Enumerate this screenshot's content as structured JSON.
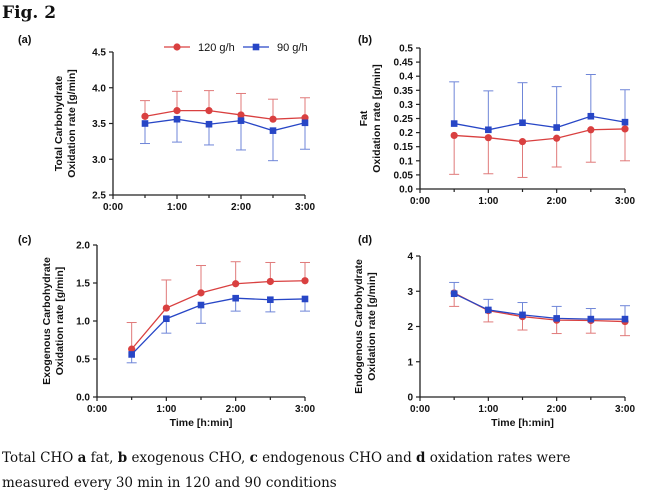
{
  "figure": {
    "title": "Fig. 2"
  },
  "caption": {
    "p1": "Total CHO ",
    "b1": "a",
    "p2": " fat, ",
    "b2": "b",
    "p3": " exogenous CHO, ",
    "b3": "c",
    "p4": " endogenous CHO and ",
    "b4": "d",
    "p5": " oxidation rates were measured every 30 min in 120 and 90 conditions"
  },
  "legend": {
    "entries": [
      "120 g/h",
      "90 g/h"
    ],
    "placement": "top"
  },
  "colors": {
    "s120": "#d94040",
    "s90": "#2746c6",
    "e120": "#e07a7a",
    "e90": "#6f86d8",
    "axis": "#222222"
  },
  "chart_data": [
    {
      "panel": "(a)",
      "type": "line",
      "ylabel": [
        "Total Carbohydrate",
        "Oxidation rate [g/min]"
      ],
      "xlabel": "",
      "ylim": [
        2.5,
        4.5
      ],
      "yticks": [
        "2.5",
        "3.0",
        "3.5",
        "4.0",
        "4.5"
      ],
      "x": [
        0.5,
        1.0,
        1.5,
        2.0,
        2.5,
        3.0
      ],
      "xticks": [
        "0:00",
        "1:00",
        "2:00",
        "3:00"
      ],
      "xlim": [
        0,
        3
      ],
      "series": [
        {
          "name": "120 g/h",
          "values": [
            3.6,
            3.68,
            3.68,
            3.62,
            3.56,
            3.58
          ],
          "err_up": [
            0.22,
            0.27,
            0.28,
            0.3,
            0.28,
            0.28
          ],
          "err_down": [
            0.0,
            0.0,
            0.0,
            0.0,
            0.0,
            0.0
          ]
        },
        {
          "name": "90 g/h",
          "values": [
            3.5,
            3.56,
            3.49,
            3.54,
            3.4,
            3.51
          ],
          "err_up": [
            0.0,
            0.0,
            0.0,
            0.0,
            0.0,
            0.0
          ],
          "err_down": [
            0.28,
            0.32,
            0.29,
            0.41,
            0.42,
            0.37
          ]
        }
      ]
    },
    {
      "panel": "(b)",
      "type": "line",
      "ylabel": [
        "Fat",
        "Oxidation rate [g/min]"
      ],
      "xlabel": "",
      "ylim": [
        0,
        0.5
      ],
      "yticks": [
        "0.0",
        "0.05",
        "0.1",
        "0.15",
        "0.2",
        "0.25",
        "0.3",
        "0.35",
        "0.4",
        "0.45",
        "0.5"
      ],
      "x": [
        0.5,
        1.0,
        1.5,
        2.0,
        2.5,
        3.0
      ],
      "xticks": [
        "0:00",
        "1:00",
        "2:00",
        "3:00"
      ],
      "xlim": [
        0,
        3
      ],
      "series": [
        {
          "name": "120 g/h",
          "values": [
            0.19,
            0.182,
            0.168,
            0.18,
            0.21,
            0.213
          ],
          "err_up": [
            0.0,
            0.0,
            0.0,
            0.0,
            0.0,
            0.0
          ],
          "err_down": [
            0.138,
            0.128,
            0.127,
            0.102,
            0.115,
            0.113
          ]
        },
        {
          "name": "90 g/h",
          "values": [
            0.232,
            0.21,
            0.235,
            0.218,
            0.258,
            0.237
          ],
          "err_up": [
            0.148,
            0.138,
            0.142,
            0.145,
            0.148,
            0.115
          ],
          "err_down": [
            0.0,
            0.0,
            0.0,
            0.0,
            0.0,
            0.0
          ]
        }
      ]
    },
    {
      "panel": "(c)",
      "type": "line",
      "ylabel": [
        "Exogenous Carbohydrate",
        "Oxidation rate [g/min]"
      ],
      "xlabel": "Time [h:min]",
      "ylim": [
        0,
        2.0
      ],
      "yticks": [
        "0.0",
        "0.5",
        "1.0",
        "1.5",
        "2.0"
      ],
      "x": [
        0.5,
        1.0,
        1.5,
        2.0,
        2.5,
        3.0
      ],
      "xticks": [
        "0:00",
        "1:00",
        "2:00",
        "3:00"
      ],
      "xlim": [
        0,
        3
      ],
      "series": [
        {
          "name": "120 g/h",
          "values": [
            0.63,
            1.17,
            1.37,
            1.49,
            1.52,
            1.53
          ],
          "err_up": [
            0.35,
            0.37,
            0.36,
            0.29,
            0.25,
            0.24
          ],
          "err_down": [
            0.0,
            0.0,
            0.0,
            0.0,
            0.0,
            0.0
          ]
        },
        {
          "name": "90 g/h",
          "values": [
            0.56,
            1.03,
            1.21,
            1.3,
            1.28,
            1.29
          ],
          "err_up": [
            0.0,
            0.0,
            0.0,
            0.0,
            0.0,
            0.0
          ],
          "err_down": [
            0.11,
            0.19,
            0.24,
            0.17,
            0.16,
            0.16
          ]
        }
      ]
    },
    {
      "panel": "(d)",
      "type": "line",
      "ylabel": [
        "Endogenous Carbohydrate",
        "Oxidation rate [g/min]"
      ],
      "xlabel": "Time [h:min]",
      "ylim": [
        0,
        4
      ],
      "yticks": [
        "0",
        "1",
        "2",
        "3",
        "4"
      ],
      "x": [
        0.5,
        1.0,
        1.5,
        2.0,
        2.5,
        3.0
      ],
      "xticks": [
        "0:00",
        "1:00",
        "2:00",
        "3:00"
      ],
      "xlim": [
        0,
        3
      ],
      "series": [
        {
          "name": "120 g/h",
          "values": [
            2.95,
            2.45,
            2.28,
            2.18,
            2.17,
            2.14
          ],
          "err_up": [
            0.0,
            0.0,
            0.0,
            0.0,
            0.0,
            0.0
          ],
          "err_down": [
            0.38,
            0.32,
            0.38,
            0.38,
            0.36,
            0.4
          ]
        },
        {
          "name": "90 g/h",
          "values": [
            2.93,
            2.47,
            2.33,
            2.23,
            2.21,
            2.21
          ],
          "err_up": [
            0.32,
            0.3,
            0.35,
            0.34,
            0.3,
            0.38
          ],
          "err_down": [
            0.0,
            0.0,
            0.0,
            0.0,
            0.0,
            0.0
          ]
        }
      ]
    }
  ]
}
